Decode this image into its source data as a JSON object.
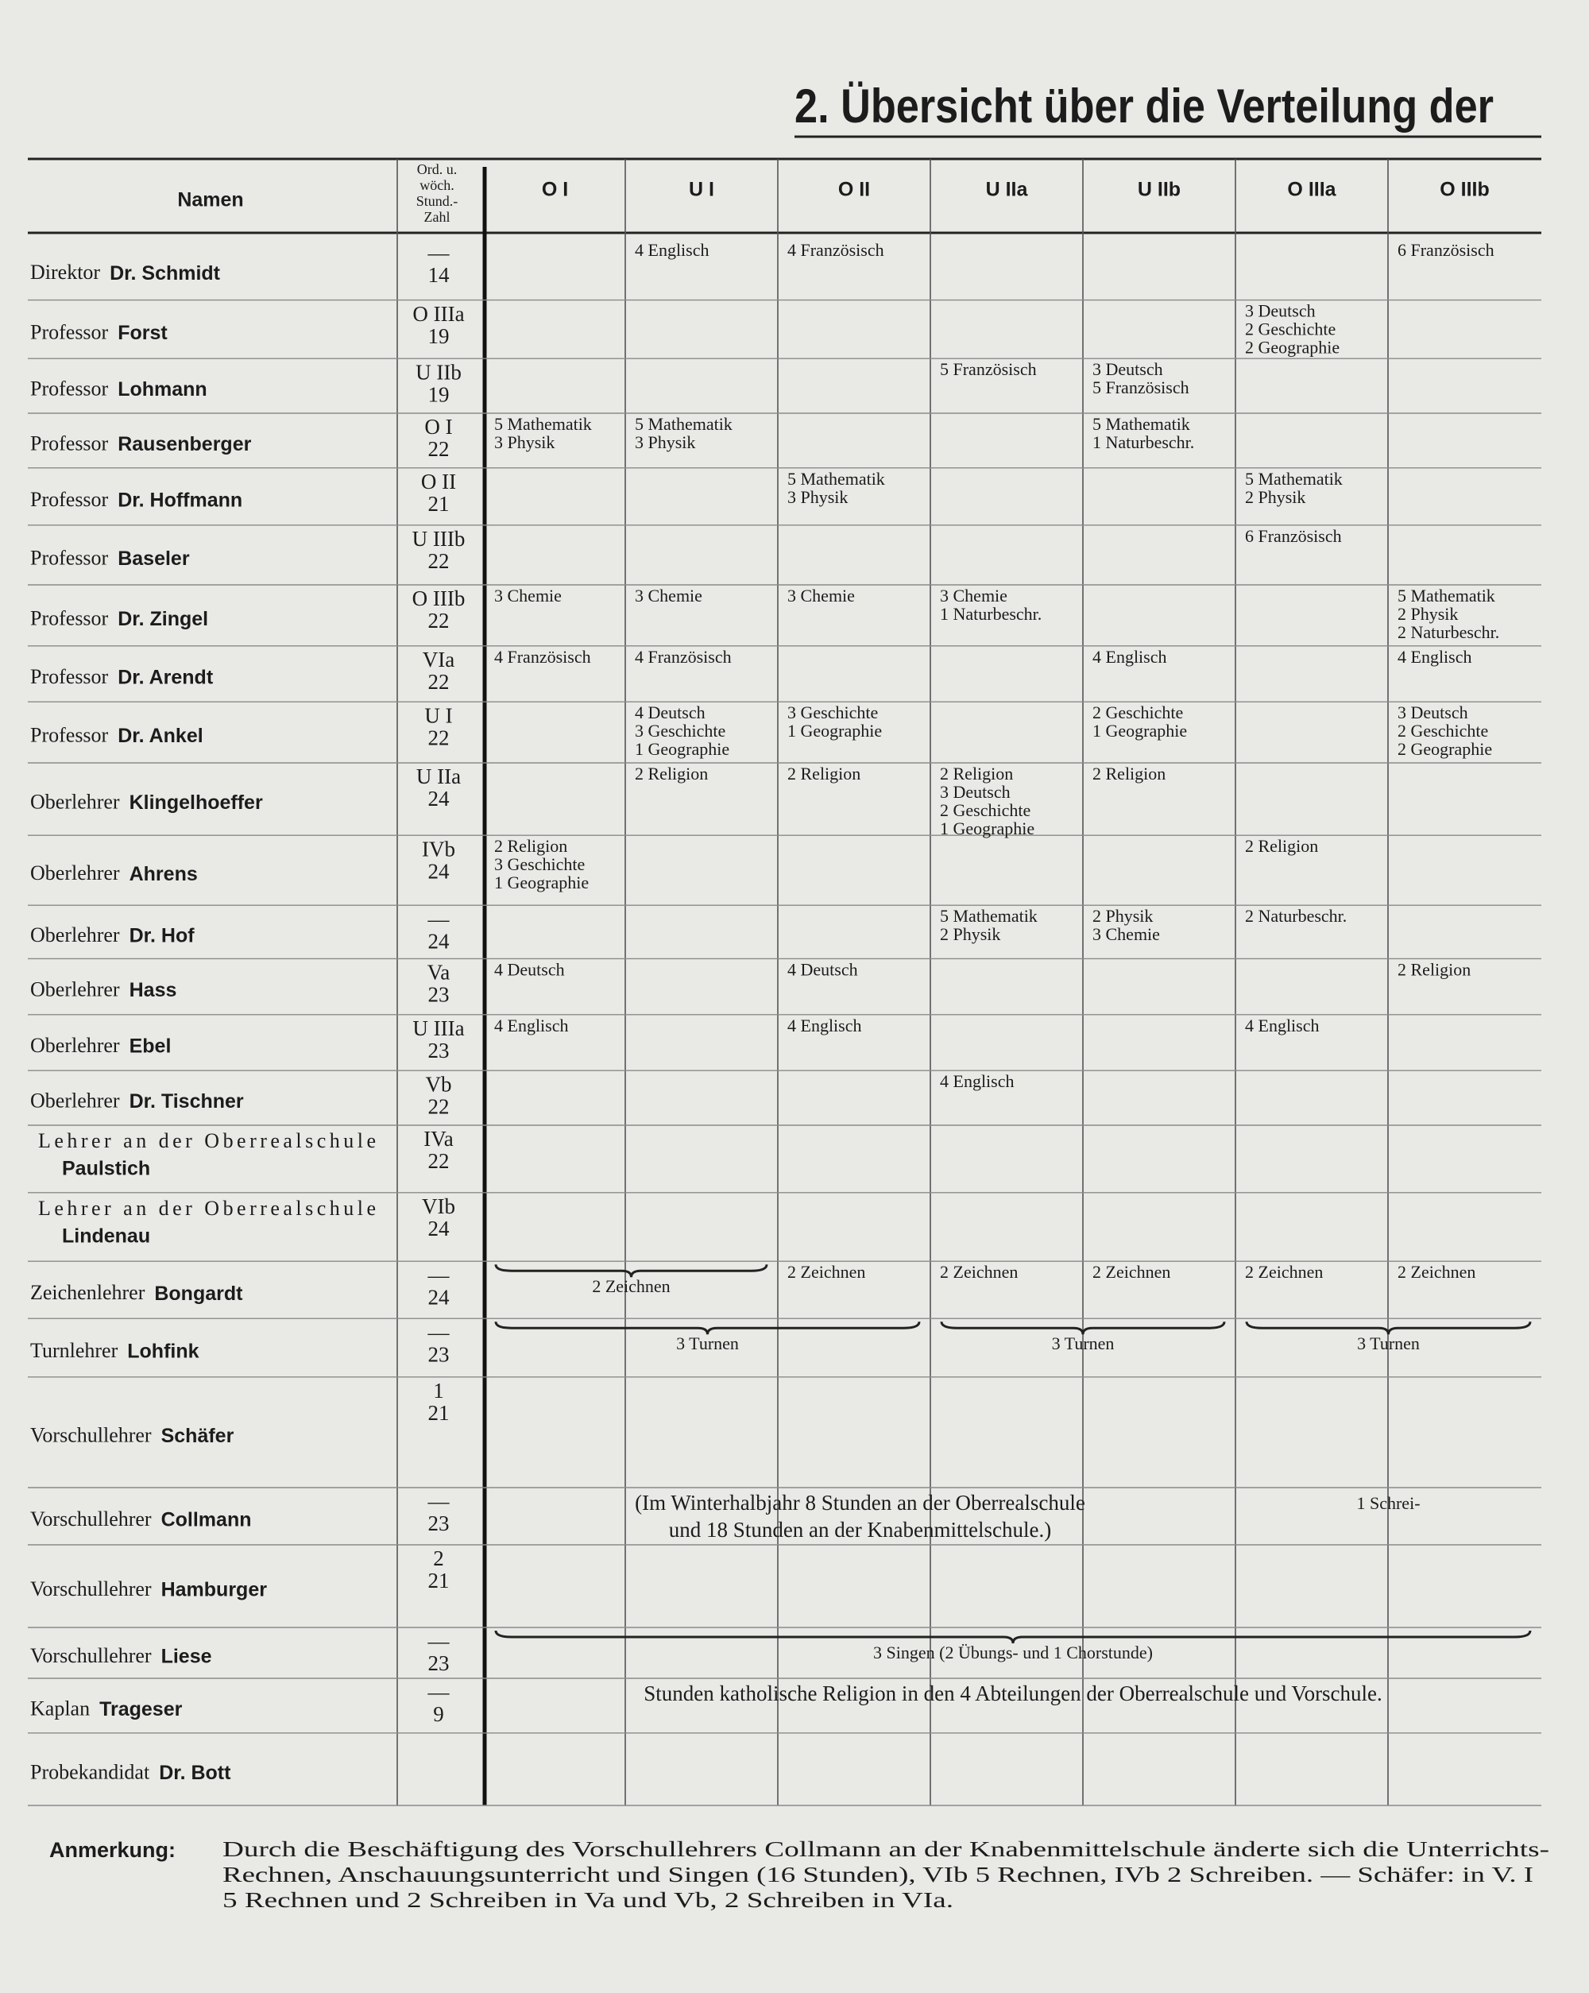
{
  "title": "2. Übersicht über die Verteilung der",
  "table": {
    "headers": {
      "name": "Namen",
      "hours": [
        "Ord. u.",
        "wöch.",
        "Stund.-",
        "Zahl"
      ],
      "classes": [
        "O I",
        "U I",
        "O II",
        "U IIa",
        "U IIb",
        "O IIIa",
        "O IIIb"
      ]
    },
    "rows": [
      {
        "role": "Direktor",
        "name": "Dr. Schmidt",
        "ord": "—",
        "hours": "14",
        "cells": [
          [],
          [
            "4 Englisch"
          ],
          [
            "4 Französisch"
          ],
          [],
          [],
          [],
          [
            "6 Französisch"
          ]
        ]
      },
      {
        "role": "Professor",
        "name": "Forst",
        "ord": "O IIIa",
        "hours": "19",
        "cells": [
          [],
          [],
          [],
          [],
          [],
          [
            "3 Deutsch",
            "2 Geschichte",
            "2 Geographie"
          ],
          []
        ]
      },
      {
        "role": "Professor",
        "name": "Lohmann",
        "ord": "U IIb",
        "hours": "19",
        "cells": [
          [],
          [],
          [],
          [
            "5 Französisch"
          ],
          [
            "3 Deutsch",
            "5 Französisch"
          ],
          [],
          []
        ]
      },
      {
        "role": "Professor",
        "name": "Rausenberger",
        "ord": "O I",
        "hours": "22",
        "cells": [
          [
            "5 Mathematik",
            "3 Physik"
          ],
          [
            "5 Mathematik",
            "3 Physik"
          ],
          [],
          [],
          [
            "5 Mathematik",
            "1 Naturbeschr."
          ],
          [],
          []
        ]
      },
      {
        "role": "Professor",
        "name": "Dr. Hoffmann",
        "ord": "O II",
        "hours": "21",
        "cells": [
          [],
          [],
          [
            "5 Mathematik",
            "3 Physik"
          ],
          [],
          [],
          [
            "5 Mathematik",
            "2 Physik"
          ],
          []
        ]
      },
      {
        "role": "Professor",
        "name": "Baseler",
        "ord": "U IIIb",
        "hours": "22",
        "cells": [
          [],
          [],
          [],
          [],
          [],
          [
            "6 Französisch"
          ],
          []
        ]
      },
      {
        "role": "Professor",
        "name": "Dr. Zingel",
        "ord": "O IIIb",
        "hours": "22",
        "cells": [
          [
            "3 Chemie"
          ],
          [
            "3 Chemie"
          ],
          [
            "3 Chemie"
          ],
          [
            "3 Chemie",
            "1 Naturbeschr."
          ],
          [],
          [],
          [
            "5 Mathematik",
            "2 Physik",
            "2 Naturbeschr."
          ]
        ]
      },
      {
        "role": "Professor",
        "name": "Dr. Arendt",
        "ord": "VIa",
        "hours": "22",
        "cells": [
          [
            "4 Französisch"
          ],
          [
            "4 Französisch"
          ],
          [],
          [],
          [
            "4 Englisch"
          ],
          [],
          [
            "4 Englisch"
          ]
        ]
      },
      {
        "role": "Professor",
        "name": "Dr. Ankel",
        "ord": "U I",
        "hours": "22",
        "cells": [
          [],
          [
            "4 Deutsch",
            "3 Geschichte",
            "1 Geographie"
          ],
          [
            "3 Geschichte",
            "1 Geographie"
          ],
          [],
          [
            "2 Geschichte",
            "1 Geographie"
          ],
          [],
          [
            "3 Deutsch",
            "2 Geschichte",
            "2 Geographie"
          ]
        ]
      },
      {
        "role": "Oberlehrer",
        "name": "Klingelhoeffer",
        "ord": "U IIa",
        "hours": "24",
        "cells": [
          [],
          [
            "2 Religion"
          ],
          [
            "2 Religion"
          ],
          [
            "2 Religion",
            "3 Deutsch",
            "2 Geschichte",
            "1 Geographie"
          ],
          [
            "2 Religion"
          ],
          [],
          []
        ]
      },
      {
        "role": "Oberlehrer",
        "name": "Ahrens",
        "ord": "IVb",
        "hours": "24",
        "cells": [
          [
            "2 Religion",
            "3 Geschichte",
            "1 Geographie"
          ],
          [],
          [],
          [],
          [],
          [
            "2 Religion"
          ],
          []
        ]
      },
      {
        "role": "Oberlehrer",
        "name": "Dr. Hof",
        "ord": "—",
        "hours": "24",
        "cells": [
          [],
          [],
          [],
          [
            "5 Mathematik",
            "2 Physik"
          ],
          [
            "2 Physik",
            "3 Chemie"
          ],
          [
            "2 Naturbeschr."
          ],
          []
        ]
      },
      {
        "role": "Oberlehrer",
        "name": "Hass",
        "ord": "Va",
        "hours": "23",
        "cells": [
          [
            "4 Deutsch"
          ],
          [],
          [
            "4 Deutsch"
          ],
          [],
          [],
          [],
          [
            "2 Religion"
          ]
        ]
      },
      {
        "role": "Oberlehrer",
        "name": "Ebel",
        "ord": "U IIIa",
        "hours": "23",
        "cells": [
          [
            "4 Englisch"
          ],
          [],
          [
            "4 Englisch"
          ],
          [],
          [],
          [
            "4 Englisch"
          ],
          []
        ]
      },
      {
        "role": "Oberlehrer",
        "name": "Dr. Tischner",
        "ord": "Vb",
        "hours": "22",
        "cells": [
          [],
          [],
          [],
          [
            "4 Englisch"
          ],
          [],
          [],
          []
        ]
      },
      {
        "role": "Lehrer an der Oberrealschule",
        "name": "Paulstich",
        "ord": "IVa",
        "hours": "22",
        "cells": [
          [],
          [],
          [],
          [],
          [],
          [],
          []
        ]
      },
      {
        "role": "Lehrer an der Oberrealschule",
        "name": "Lindenau",
        "ord": "VIb",
        "hours": "24",
        "cells": [
          [],
          [],
          [],
          [],
          [],
          [],
          []
        ]
      },
      {
        "role": "Zeichenlehrer",
        "name": "Bongardt",
        "ord": "—",
        "hours": "24",
        "cells": [
          [],
          [],
          [
            "2 Zeichnen"
          ],
          [
            "2 Zeichnen"
          ],
          [
            "2 Zeichnen"
          ],
          [
            "2 Zeichnen"
          ],
          [
            "2 Zeichnen"
          ]
        ],
        "spans": [
          [
            "2 Zeichnen"
          ]
        ]
      },
      {
        "role": "Turnlehrer",
        "name": "Lohfink",
        "ord": "—",
        "hours": "23",
        "cells": [],
        "spans": [
          [
            "3 Turnen"
          ],
          [
            "3 Turnen"
          ],
          [
            "3 Turnen"
          ]
        ]
      },
      {
        "role": "Vorschullehrer",
        "name": "Schäfer",
        "ord": "1",
        "hours": "21",
        "cells": []
      },
      {
        "role": "Vorschullehrer",
        "name": "Collmann",
        "ord": "—",
        "hours": "23",
        "cells": [],
        "spans": [
          [
            "(Im Winterhalbjahr 8 Stunden an der Oberrealschule",
            "und 18 Stunden an der Knabenmittelschule.)"
          ],
          [
            "1 Schrei-"
          ]
        ]
      },
      {
        "role": "Vorschullehrer",
        "name": "Hamburger",
        "ord": "2",
        "hours": "21",
        "cells": []
      },
      {
        "role": "Vorschullehrer",
        "name": "Liese",
        "ord": "—",
        "hours": "23",
        "cells": [],
        "spans": [
          [
            "3 Singen (2 Übungs- und 1 Chorstunde)"
          ]
        ]
      },
      {
        "role": "Kaplan",
        "name": "Trageser",
        "ord": "—",
        "hours": "9",
        "cells": [],
        "spans": [
          [
            "Stunden katholische Religion in den 4 Abteilungen der Oberrealschule und Vorschule."
          ]
        ]
      },
      {
        "role": "Probekandidat",
        "name": "Dr. Bott",
        "cells": []
      }
    ]
  },
  "note": {
    "label": "Anmerkung:",
    "lines": [
      "Durch die Beschäftigung des Vorschullehrers Collmann an der Knabenmittelschule änderte sich die Unterrichts-",
      "Rechnen, Anschauungsunterricht und Singen (16 Stunden), VIb 5 Rechnen, IVb 2 Schreiben. — Schäfer: in V. I",
      "5 Rechnen und 2 Schreiben in Va und Vb, 2 Schreiben in VIa."
    ]
  }
}
